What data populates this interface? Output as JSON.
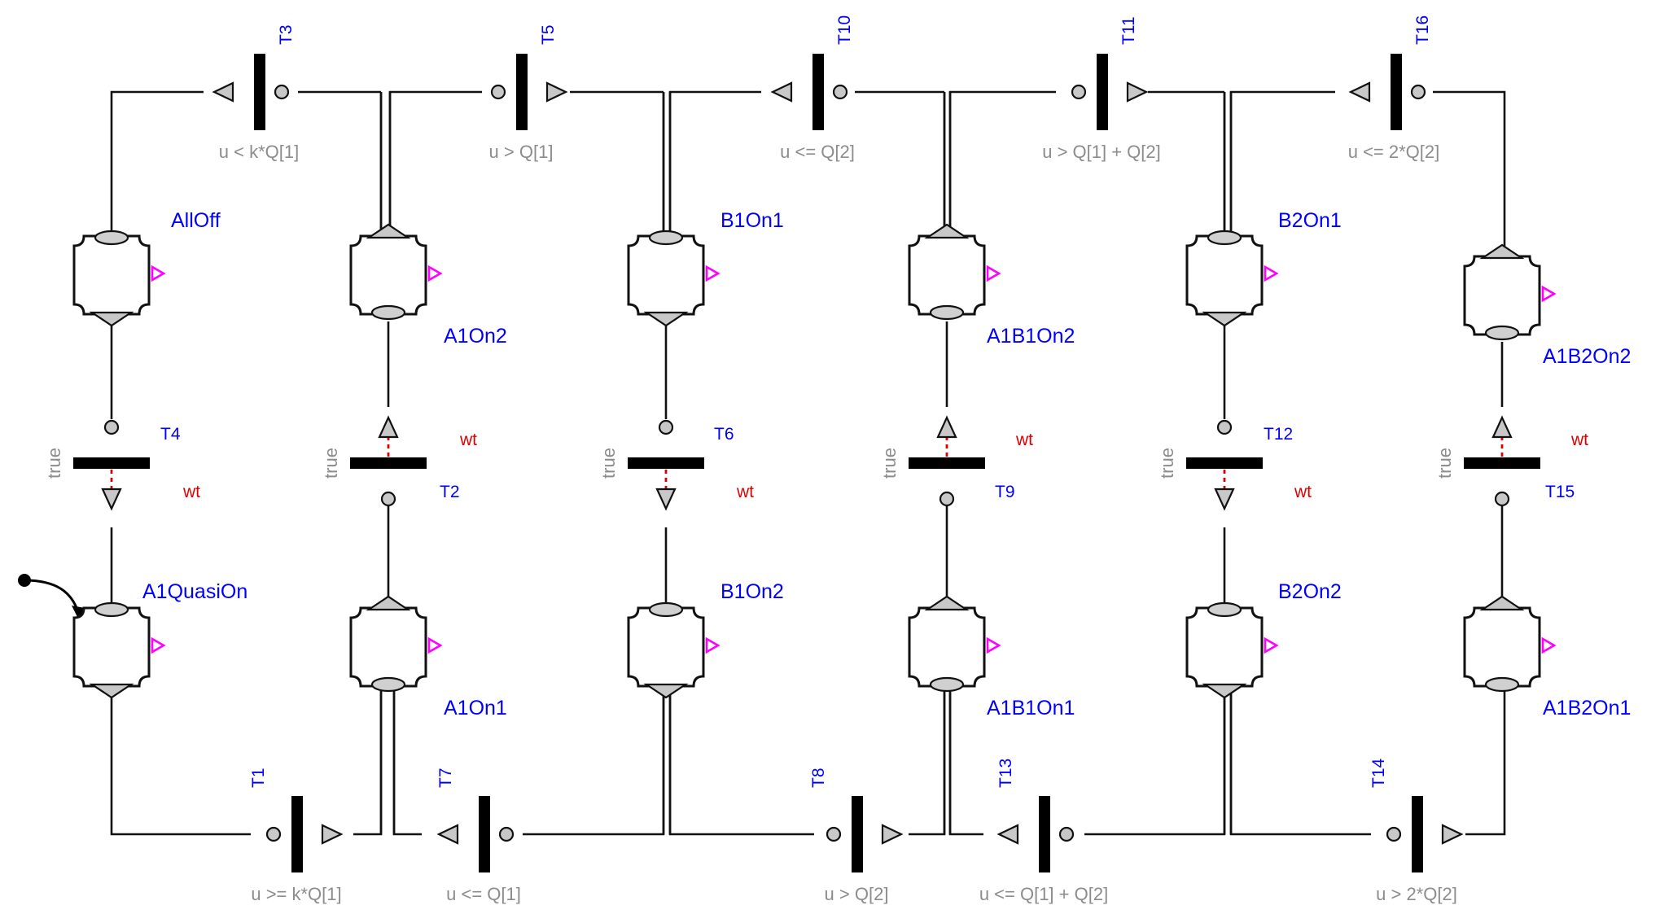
{
  "steps": [
    {
      "id": "AllOff",
      "name": "AllOff"
    },
    {
      "id": "A1On2",
      "name": "A1On2"
    },
    {
      "id": "B1On1",
      "name": "B1On1"
    },
    {
      "id": "A1B1On2",
      "name": "A1B1On2"
    },
    {
      "id": "B2On1",
      "name": "B2On1"
    },
    {
      "id": "A1B2On2",
      "name": "A1B2On2"
    },
    {
      "id": "A1QuasiOn",
      "name": "A1QuasiOn"
    },
    {
      "id": "A1On1",
      "name": "A1On1"
    },
    {
      "id": "B1On2",
      "name": "B1On2"
    },
    {
      "id": "A1B1On1",
      "name": "A1B1On1"
    },
    {
      "id": "B2On2",
      "name": "B2On2"
    },
    {
      "id": "A1B2On1",
      "name": "A1B2On1"
    }
  ],
  "top_transitions": [
    {
      "id": "T3",
      "name": "T3",
      "condition": "u < k*Q[1]"
    },
    {
      "id": "T5",
      "name": "T5",
      "condition": "u > Q[1]"
    },
    {
      "id": "T10",
      "name": "T10",
      "condition": "u <= Q[2]"
    },
    {
      "id": "T11",
      "name": "T11",
      "condition": "u > Q[1] + Q[2]"
    },
    {
      "id": "T16",
      "name": "T16",
      "condition": "u <= 2*Q[2]"
    }
  ],
  "bottom_transitions": [
    {
      "id": "T1",
      "name": "T1",
      "condition": "u >= k*Q[1]"
    },
    {
      "id": "T7",
      "name": "T7",
      "condition": "u <= Q[1]"
    },
    {
      "id": "T8",
      "name": "T8",
      "condition": "u > Q[2]"
    },
    {
      "id": "T13",
      "name": "T13",
      "condition": "u <= Q[1] + Q[2]"
    },
    {
      "id": "T14",
      "name": "T14",
      "condition": "u > 2*Q[2]"
    }
  ],
  "mid_transitions": [
    {
      "id": "T4",
      "name": "T4",
      "condition": "true",
      "wait_label": "wt"
    },
    {
      "id": "T2",
      "name": "T2",
      "condition": "true",
      "wait_label": "wt"
    },
    {
      "id": "T6",
      "name": "T6",
      "condition": "true",
      "wait_label": "wt"
    },
    {
      "id": "T9",
      "name": "T9",
      "condition": "true",
      "wait_label": "wt"
    },
    {
      "id": "T12",
      "name": "T12",
      "condition": "true",
      "wait_label": "wt"
    },
    {
      "id": "T15",
      "name": "T15",
      "condition": "true",
      "wait_label": "wt"
    }
  ]
}
